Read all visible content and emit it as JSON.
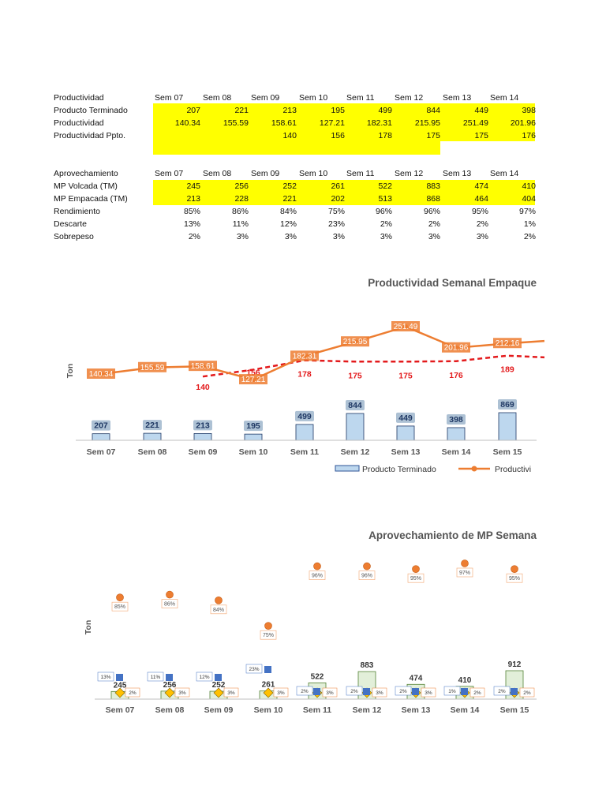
{
  "table1": {
    "header": "Productividad",
    "weeks": [
      "Sem 07",
      "Sem 08",
      "Sem 09",
      "Sem 10",
      "Sem 11",
      "Sem 12",
      "Sem 13",
      "Sem 14"
    ],
    "rows": [
      {
        "label": "Producto Terminado",
        "values": [
          "207",
          "221",
          "213",
          "195",
          "499",
          "844",
          "449",
          "398"
        ]
      },
      {
        "label": "Productividad",
        "values": [
          "140.34",
          "155.59",
          "158.61",
          "127.21",
          "182.31",
          "215.95",
          "251.49",
          "201.96"
        ]
      },
      {
        "label": "Productividad Ppto.",
        "values": [
          "",
          "",
          "140",
          "156",
          "178",
          "175",
          "175",
          "176"
        ]
      }
    ]
  },
  "table2": {
    "header": "Aprovechamiento",
    "weeks": [
      "Sem 07",
      "Sem 08",
      "Sem 09",
      "Sem 10",
      "Sem 11",
      "Sem 12",
      "Sem 13",
      "Sem 14"
    ],
    "rows": [
      {
        "label": "MP Volcada (TM)",
        "values": [
          "245",
          "256",
          "252",
          "261",
          "522",
          "883",
          "474",
          "410"
        ]
      },
      {
        "label": "MP Empacada (TM)",
        "values": [
          "213",
          "228",
          "221",
          "202",
          "513",
          "868",
          "464",
          "404"
        ]
      },
      {
        "label": "Rendimiento",
        "values": [
          "85%",
          "86%",
          "84%",
          "75%",
          "96%",
          "96%",
          "95%",
          "97%"
        ]
      },
      {
        "label": "Descarte",
        "values": [
          "13%",
          "11%",
          "12%",
          "23%",
          "2%",
          "2%",
          "2%",
          "1%"
        ]
      },
      {
        "label": "Sobrepeso",
        "values": [
          "2%",
          "3%",
          "3%",
          "3%",
          "3%",
          "3%",
          "3%",
          "2%"
        ]
      }
    ]
  },
  "colors": {
    "highlight": "#ffff00",
    "bar": "#bdd7ee",
    "line": "#ed7d31",
    "budget": "#e31a1c",
    "mp": "#e2efd9",
    "empacada": "#ffc000",
    "descarte": "#4472c4"
  },
  "chart_data": [
    {
      "type": "bar",
      "title": "Productividad Semanal Empaque",
      "ylabel": "Ton",
      "categories": [
        "Sem 07",
        "Sem 08",
        "Sem 09",
        "Sem 10",
        "Sem 11",
        "Sem 12",
        "Sem 13",
        "Sem 14",
        "Sem 15"
      ],
      "series": [
        {
          "name": "Producto Terminado",
          "values": [
            207,
            221,
            213,
            195,
            499,
            844,
            449,
            398,
            869
          ]
        },
        {
          "name": "Productivi",
          "values": [
            140.34,
            155.59,
            158.61,
            127.21,
            182.31,
            215.95,
            251.49,
            201.96,
            212.16
          ]
        },
        {
          "name": "",
          "values": [
            null,
            null,
            140,
            156,
            178,
            175,
            175,
            176,
            189
          ]
        }
      ],
      "line_labels": [
        "140.34",
        "155.59",
        "158.61",
        "127.21",
        "182.31",
        "215.95",
        "251.49",
        "201.96",
        "212.16"
      ],
      "budget_labels": [
        "",
        "",
        "140",
        "156",
        "178",
        "175",
        "175",
        "176",
        "189"
      ],
      "bar_labels": [
        "207",
        "221",
        "213",
        "195",
        "499",
        "844",
        "449",
        "398",
        "869"
      ],
      "legend_position": "bottom"
    },
    {
      "type": "bar",
      "title": "Aprovechamiento de MP Semana",
      "ylabel": "Ton",
      "categories": [
        "Sem 07",
        "Sem 08",
        "Sem 09",
        "Sem 10",
        "Sem 11",
        "Sem 12",
        "Sem 13",
        "Sem 14",
        "Sem 15"
      ],
      "mp_volcada": [
        245,
        256,
        252,
        261,
        522,
        883,
        474,
        410,
        912
      ],
      "mp_labels": [
        "245",
        "256",
        "252",
        "261",
        "522",
        "883",
        "474",
        "410",
        "912"
      ],
      "rendimiento": [
        "85%",
        "86%",
        "84%",
        "75%",
        "96%",
        "96%",
        "95%",
        "97%",
        "95%"
      ],
      "rendimiento_values": [
        85,
        86,
        84,
        75,
        96,
        96,
        95,
        97,
        95
      ],
      "descarte": [
        "13%",
        "11%",
        "12%",
        "23%",
        "2%",
        "2%",
        "2%",
        "1%",
        "2%"
      ],
      "sobrepeso": [
        "2%",
        "3%",
        "3%",
        "3%",
        "3%",
        "3%",
        "3%",
        "2%",
        "2%"
      ]
    }
  ]
}
